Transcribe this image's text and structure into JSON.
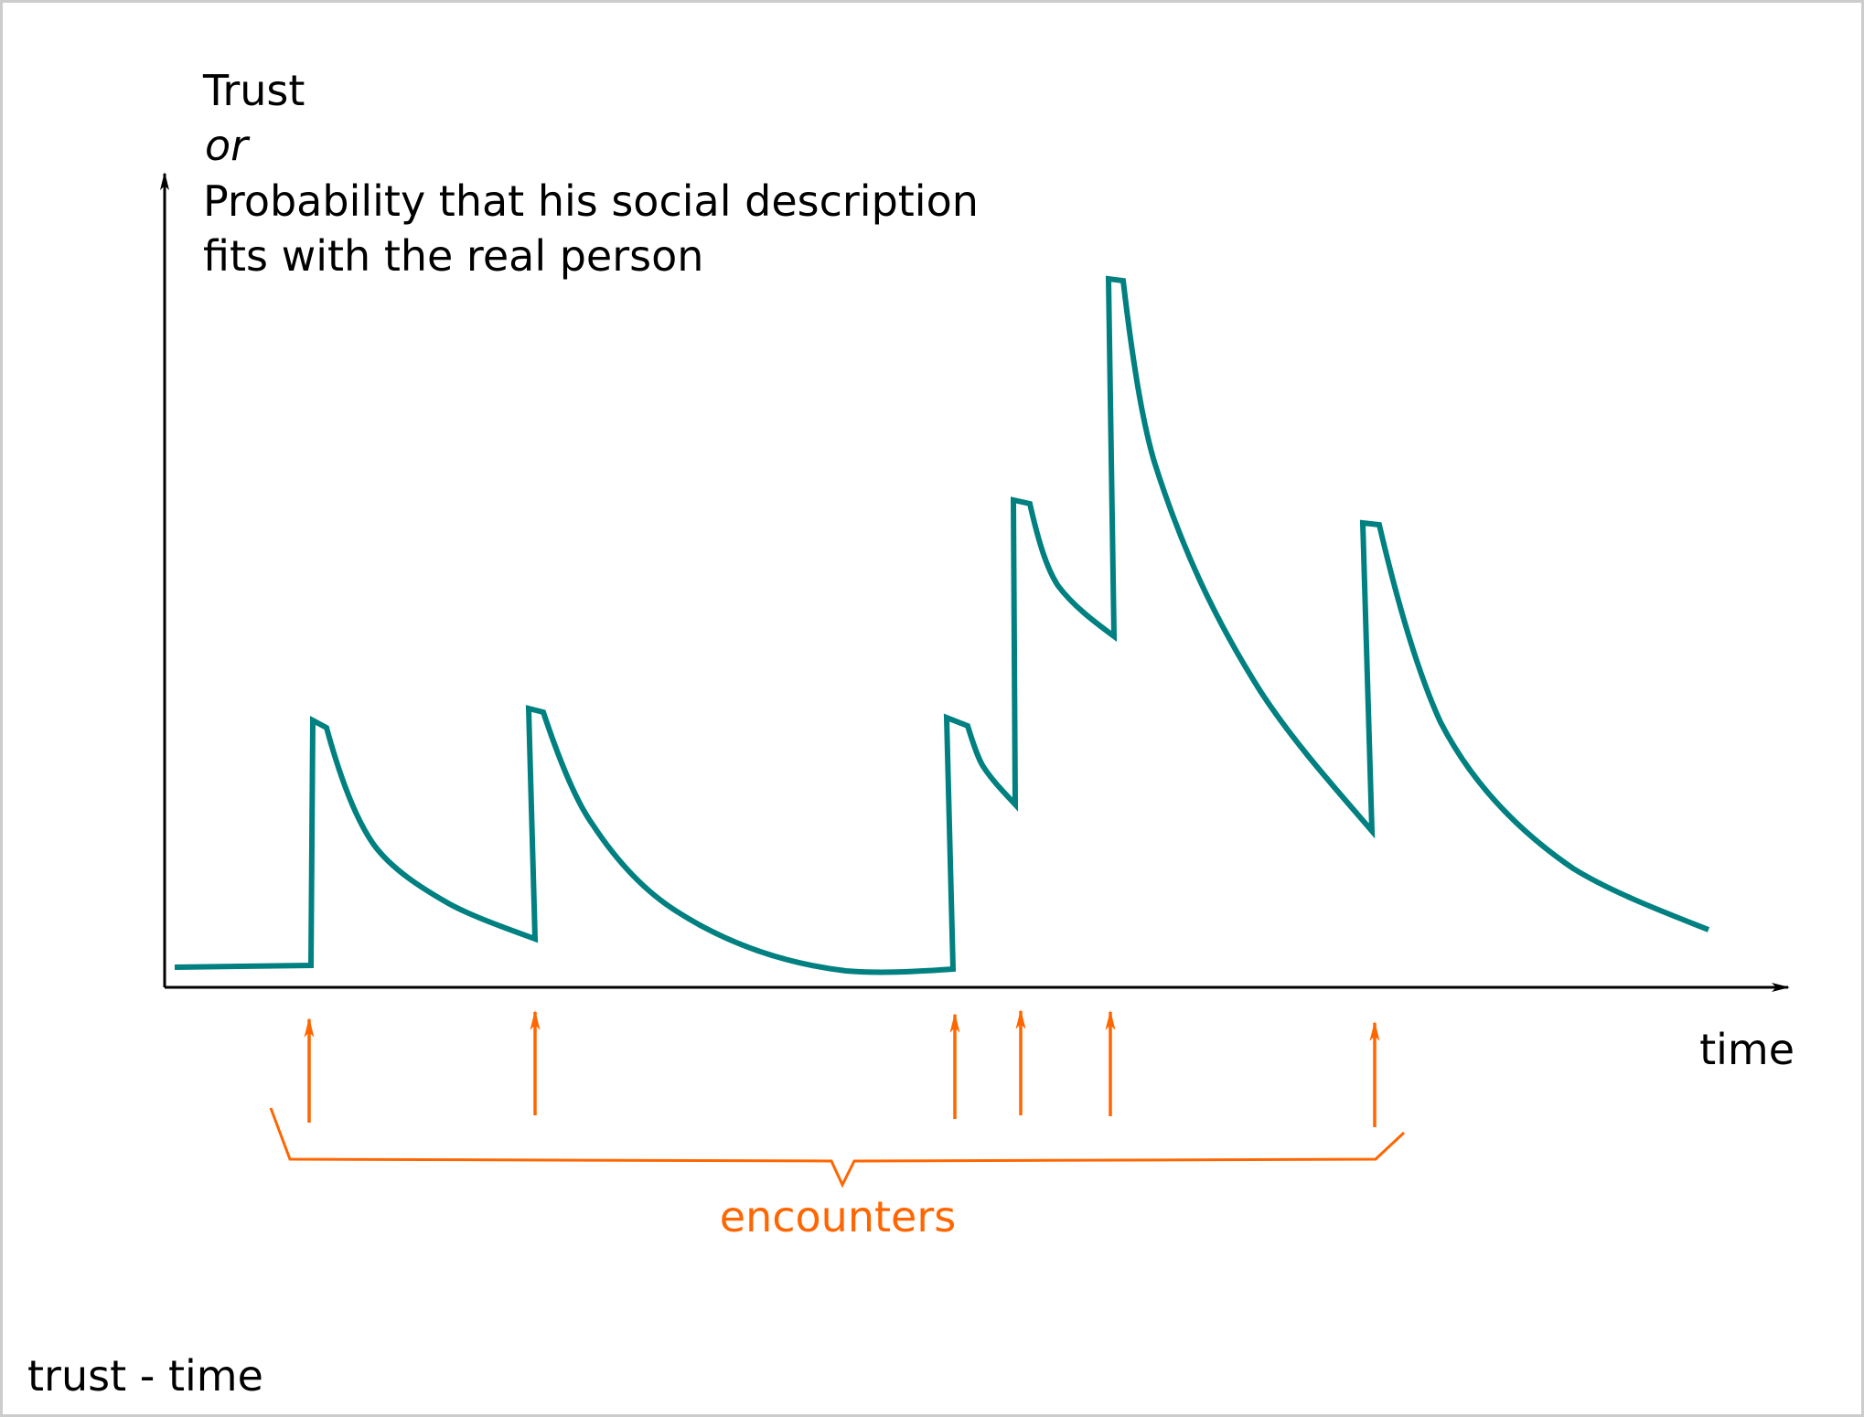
{
  "colors": {
    "frame": "#cccccc",
    "axis": "#000000",
    "curve": "#008080",
    "encounter": "#ff6600"
  },
  "y_axis_label": {
    "line1": "Trust",
    "line2": "or",
    "line3": "Probability that his social description",
    "line4": "fits with the real person"
  },
  "x_axis_label": "time",
  "encounters_label": "encounters",
  "caption": "trust - time",
  "encounters": [
    {
      "name": "encounter-1"
    },
    {
      "name": "encounter-2"
    },
    {
      "name": "encounter-3"
    },
    {
      "name": "encounter-4"
    },
    {
      "name": "encounter-5"
    },
    {
      "name": "encounter-6"
    }
  ]
}
